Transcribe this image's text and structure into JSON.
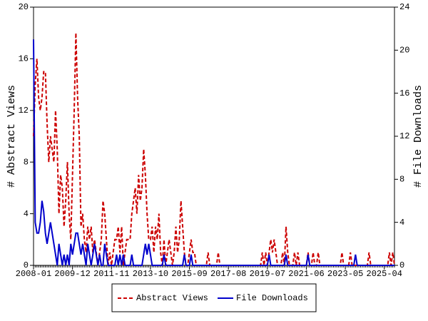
{
  "chart_data": {
    "type": "line",
    "x": [
      "2008-01",
      "2008-02",
      "2008-03",
      "2008-04",
      "2008-05",
      "2008-06",
      "2008-07",
      "2008-08",
      "2008-09",
      "2008-10",
      "2008-11",
      "2008-12",
      "2009-01",
      "2009-02",
      "2009-03",
      "2009-04",
      "2009-05",
      "2009-06",
      "2009-07",
      "2009-08",
      "2009-09",
      "2009-10",
      "2009-11",
      "2009-12",
      "2010-01",
      "2010-02",
      "2010-03",
      "2010-04",
      "2010-05",
      "2010-06",
      "2010-07",
      "2010-08",
      "2010-09",
      "2010-10",
      "2010-11",
      "2010-12",
      "2011-01",
      "2011-02",
      "2011-03",
      "2011-04",
      "2011-05",
      "2011-06",
      "2011-07",
      "2011-08",
      "2011-09",
      "2011-10",
      "2011-11",
      "2011-12",
      "2012-01",
      "2012-02",
      "2012-03",
      "2012-04",
      "2012-05",
      "2012-06",
      "2012-07",
      "2012-08",
      "2012-09",
      "2012-10",
      "2012-11",
      "2012-12",
      "2013-01",
      "2013-02",
      "2013-03",
      "2013-04",
      "2013-05",
      "2013-06",
      "2013-07",
      "2013-08",
      "2013-09",
      "2013-10",
      "2013-11",
      "2013-12",
      "2014-01",
      "2014-02",
      "2014-03",
      "2014-04",
      "2014-05",
      "2014-06",
      "2014-07",
      "2014-08",
      "2014-09",
      "2014-10",
      "2014-11",
      "2014-12",
      "2015-01",
      "2015-02",
      "2015-03",
      "2015-04",
      "2015-05",
      "2015-06",
      "2015-07",
      "2015-08",
      "2015-09",
      "2015-10",
      "2015-11",
      "2015-12",
      "2016-01",
      "2016-02",
      "2016-03",
      "2016-04",
      "2016-05",
      "2016-06",
      "2016-07",
      "2016-08",
      "2016-09",
      "2016-10",
      "2016-11",
      "2016-12",
      "2017-01",
      "2017-02",
      "2017-03",
      "2017-04",
      "2017-05",
      "2017-06",
      "2017-07",
      "2017-08",
      "2017-09",
      "2017-10",
      "2017-11",
      "2017-12",
      "2018-01",
      "2018-02",
      "2018-03",
      "2018-04",
      "2018-05",
      "2018-06",
      "2018-07",
      "2018-08",
      "2018-09",
      "2018-10",
      "2018-11",
      "2018-12",
      "2019-01",
      "2019-02",
      "2019-03",
      "2019-04",
      "2019-05",
      "2019-06",
      "2019-07",
      "2019-08",
      "2019-09",
      "2019-10",
      "2019-11",
      "2019-12",
      "2020-01",
      "2020-02",
      "2020-03",
      "2020-04",
      "2020-05",
      "2020-06",
      "2020-07",
      "2020-08",
      "2020-09",
      "2020-10",
      "2020-11",
      "2020-12",
      "2021-01",
      "2021-02",
      "2021-03",
      "2021-04",
      "2021-05",
      "2021-06",
      "2021-07",
      "2021-08",
      "2021-09",
      "2021-10",
      "2021-11",
      "2021-12",
      "2022-01",
      "2022-02",
      "2022-03",
      "2022-04",
      "2022-05",
      "2022-06",
      "2022-07",
      "2022-08",
      "2022-09",
      "2022-10",
      "2022-11",
      "2022-12",
      "2023-01",
      "2023-02",
      "2023-03",
      "2023-04",
      "2023-05",
      "2023-06",
      "2023-07",
      "2023-08",
      "2023-09",
      "2023-10",
      "2023-11",
      "2023-12",
      "2024-01",
      "2024-02",
      "2024-03",
      "2024-04",
      "2024-05",
      "2024-06",
      "2024-07",
      "2024-08",
      "2024-09",
      "2024-10",
      "2024-11",
      "2024-12",
      "2025-01",
      "2025-02",
      "2025-03",
      "2025-04",
      "2025-05",
      "2025-06",
      "2025-07",
      "2025-08",
      "2025-09",
      "2025-10"
    ],
    "xticks": [
      "2008-01",
      "2009-12",
      "2011-11",
      "2013-10",
      "2015-09",
      "2017-08",
      "2019-07",
      "2021-06",
      "2023-05",
      "2025-04"
    ],
    "ylabel": "# Abstract Views",
    "y2label": "# File Downloads",
    "ylim": [
      0,
      20
    ],
    "yticks": [
      0,
      4,
      8,
      12,
      16,
      20
    ],
    "y2lim": [
      0,
      24
    ],
    "y2ticks": [
      0,
      4,
      8,
      12,
      16,
      20,
      24
    ],
    "series": [
      {
        "name": "Abstract Views",
        "color": "#cc0000",
        "dashed": true,
        "values": [
          10,
          14,
          16,
          13,
          12,
          13,
          15,
          15,
          11,
          8,
          10,
          9,
          8,
          12,
          9,
          4,
          7,
          6,
          3,
          5,
          8,
          4,
          2,
          7,
          12,
          18,
          13,
          10,
          3,
          4,
          2,
          1,
          3,
          2,
          3,
          1,
          2,
          1,
          0,
          1,
          2,
          5,
          4,
          2,
          0,
          1,
          0,
          1,
          2,
          2,
          3,
          1,
          3,
          0,
          1,
          2,
          2,
          2,
          4,
          5,
          6,
          4,
          7,
          5,
          6,
          9,
          7,
          4,
          2,
          2,
          3,
          1,
          3,
          2,
          4,
          1,
          0,
          2,
          0,
          1,
          2,
          1,
          0,
          1,
          3,
          1,
          2,
          5,
          3,
          1,
          0,
          0,
          1,
          2,
          1,
          1,
          0,
          0,
          0,
          0,
          0,
          0,
          0,
          1,
          0,
          0,
          0,
          0,
          0,
          1,
          0,
          0,
          0,
          0,
          0,
          0,
          0,
          0,
          0,
          0,
          0,
          0,
          0,
          0,
          0,
          0,
          0,
          0,
          0,
          0,
          0,
          0,
          0,
          0,
          0,
          1,
          0,
          1,
          0,
          1,
          2,
          1,
          2,
          1,
          0,
          0,
          0,
          1,
          0,
          3,
          1,
          0,
          0,
          0,
          1,
          0,
          1,
          0,
          0,
          0,
          0,
          0,
          1,
          0,
          0,
          1,
          0,
          0,
          1,
          0,
          0,
          0,
          0,
          0,
          0,
          0,
          0,
          0,
          0,
          0,
          0,
          0,
          1,
          0,
          0,
          0,
          0,
          1,
          0,
          0,
          0,
          0,
          0,
          0,
          0,
          0,
          0,
          0,
          1,
          0,
          0,
          0,
          0,
          0,
          0,
          0,
          0,
          0,
          0,
          0,
          1,
          0,
          1,
          0
        ]
      },
      {
        "name": "File Downloads",
        "color": "#0000cc",
        "axis": "y2",
        "values": [
          21,
          4,
          3,
          3,
          4,
          6,
          5,
          3,
          2,
          3,
          4,
          3,
          2,
          1,
          0,
          2,
          1,
          0,
          1,
          0,
          1,
          0,
          2,
          1,
          2,
          3,
          3,
          2,
          1,
          2,
          1,
          0,
          2,
          1,
          0,
          1,
          2,
          1,
          0,
          1,
          0,
          0,
          2,
          1,
          0,
          0,
          0,
          0,
          0,
          1,
          0,
          1,
          0,
          1,
          0,
          0,
          0,
          0,
          1,
          0,
          0,
          0,
          0,
          0,
          0,
          1,
          2,
          1,
          2,
          1,
          0,
          0,
          0,
          0,
          0,
          0,
          0,
          1,
          0,
          0,
          0,
          0,
          0,
          0,
          0,
          0,
          0,
          0,
          0,
          1,
          0,
          0,
          0,
          1,
          0,
          0,
          0,
          0,
          0,
          0,
          0,
          0,
          0,
          0,
          0,
          0,
          0,
          0,
          0,
          0,
          0,
          0,
          0,
          0,
          0,
          0,
          0,
          0,
          0,
          0,
          0,
          0,
          0,
          0,
          0,
          0,
          0,
          0,
          0,
          0,
          0,
          0,
          0,
          0,
          0,
          0,
          0,
          0,
          0,
          1,
          0,
          0,
          0,
          0,
          0,
          0,
          0,
          0,
          0,
          1,
          0,
          0,
          0,
          0,
          0,
          0,
          0,
          0,
          0,
          0,
          0,
          0,
          1,
          0,
          0,
          0,
          0,
          0,
          0,
          0,
          0,
          0,
          0,
          0,
          0,
          0,
          0,
          0,
          0,
          0,
          0,
          0,
          0,
          0,
          0,
          0,
          0,
          0,
          0,
          0,
          1,
          0,
          0,
          0,
          0,
          0,
          0,
          0,
          0,
          0,
          0,
          0,
          0,
          0,
          0,
          0,
          0,
          0,
          0,
          0,
          0,
          0,
          0,
          0
        ]
      }
    ],
    "legend": "bottom"
  }
}
